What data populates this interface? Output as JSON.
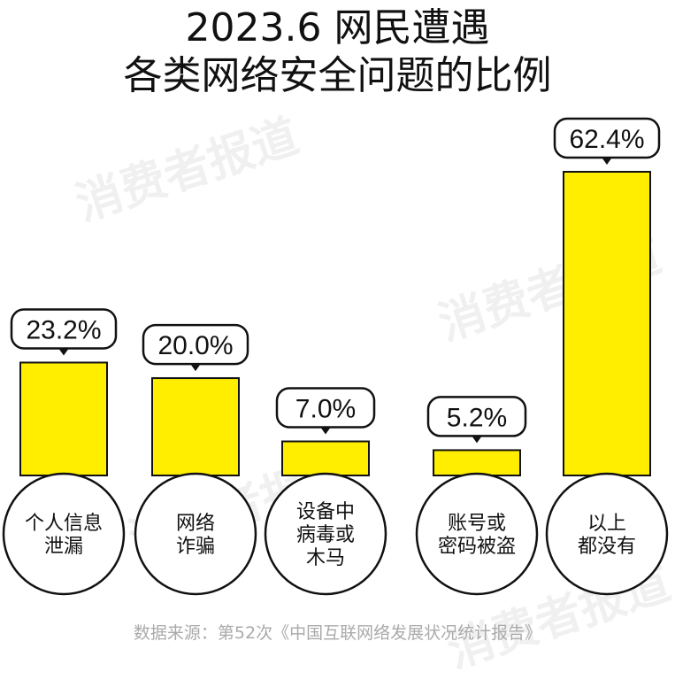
{
  "title_line1": "2023.6 网民遭遇",
  "title_line2": "各类网络安全问题的比例",
  "watermark": "消费者报道",
  "source": "数据来源：第52次《中国互联网络发展状况统计报告》",
  "colors": {
    "bar": "#FFEE00",
    "stroke": "#111111",
    "background": "#FFFFFF",
    "source_text": "#AAAAAA"
  },
  "chart_data": {
    "type": "bar",
    "title": "2023.6 网民遭遇 各类网络安全问题的比例",
    "categories": [
      [
        "个人信息",
        "泄漏"
      ],
      [
        "网络",
        "诈骗"
      ],
      [
        "设备中",
        "病毒或",
        "木马"
      ],
      [
        "账号或",
        "密码被盗"
      ],
      [
        "以上",
        "都没有"
      ]
    ],
    "values": [
      23.2,
      20.0,
      7.0,
      5.2,
      62.4
    ],
    "value_labels": [
      "23.2%",
      "20.0%",
      "7.0%",
      "5.2%",
      "62.4%"
    ],
    "unit": "%",
    "ylim": [
      0,
      62.4
    ],
    "grid": false,
    "legend": "none"
  }
}
